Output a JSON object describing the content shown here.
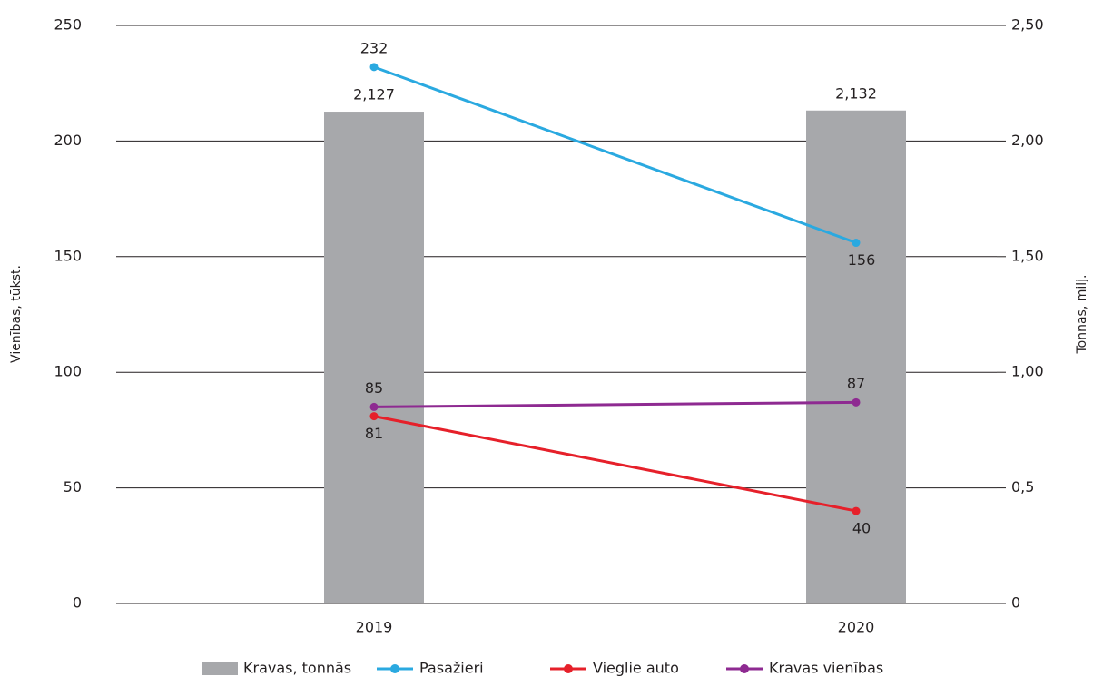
{
  "chart_data": {
    "type": "combo",
    "categories": [
      "2019",
      "2020"
    ],
    "series": [
      {
        "name": "Kravas, tonnās",
        "type": "bar",
        "axis": "y2",
        "color": "#a7a8ab",
        "values": [
          2.127,
          2.132
        ],
        "value_labels": [
          "2,127",
          "2,132"
        ]
      },
      {
        "name": "Pasažieri",
        "type": "line",
        "color": "#2aa9e0",
        "values": [
          232,
          156
        ]
      },
      {
        "name": "Vieglie auto",
        "type": "line",
        "color": "#e6202a",
        "values": [
          81,
          40
        ]
      },
      {
        "name": "Kravas vienības",
        "type": "line",
        "color": "#8e2a91",
        "values": [
          85,
          87
        ]
      }
    ],
    "ylim": [
      0,
      250
    ],
    "yticks": [
      0,
      50,
      100,
      150,
      200,
      250
    ],
    "y2lim": [
      0,
      2.5
    ],
    "y2ticks": [
      0,
      {
        "value": 0.5,
        "label": "0,5"
      },
      {
        "value": 1.0,
        "label": "1,00"
      },
      {
        "value": 1.5,
        "label": "1,50"
      },
      {
        "value": 2.0,
        "label": "2,00"
      },
      {
        "value": 2.5,
        "label": "2,50"
      }
    ],
    "ylabel": "Vienības, tūkst.",
    "y2label": "Tonnas, milj.",
    "grid": true
  }
}
